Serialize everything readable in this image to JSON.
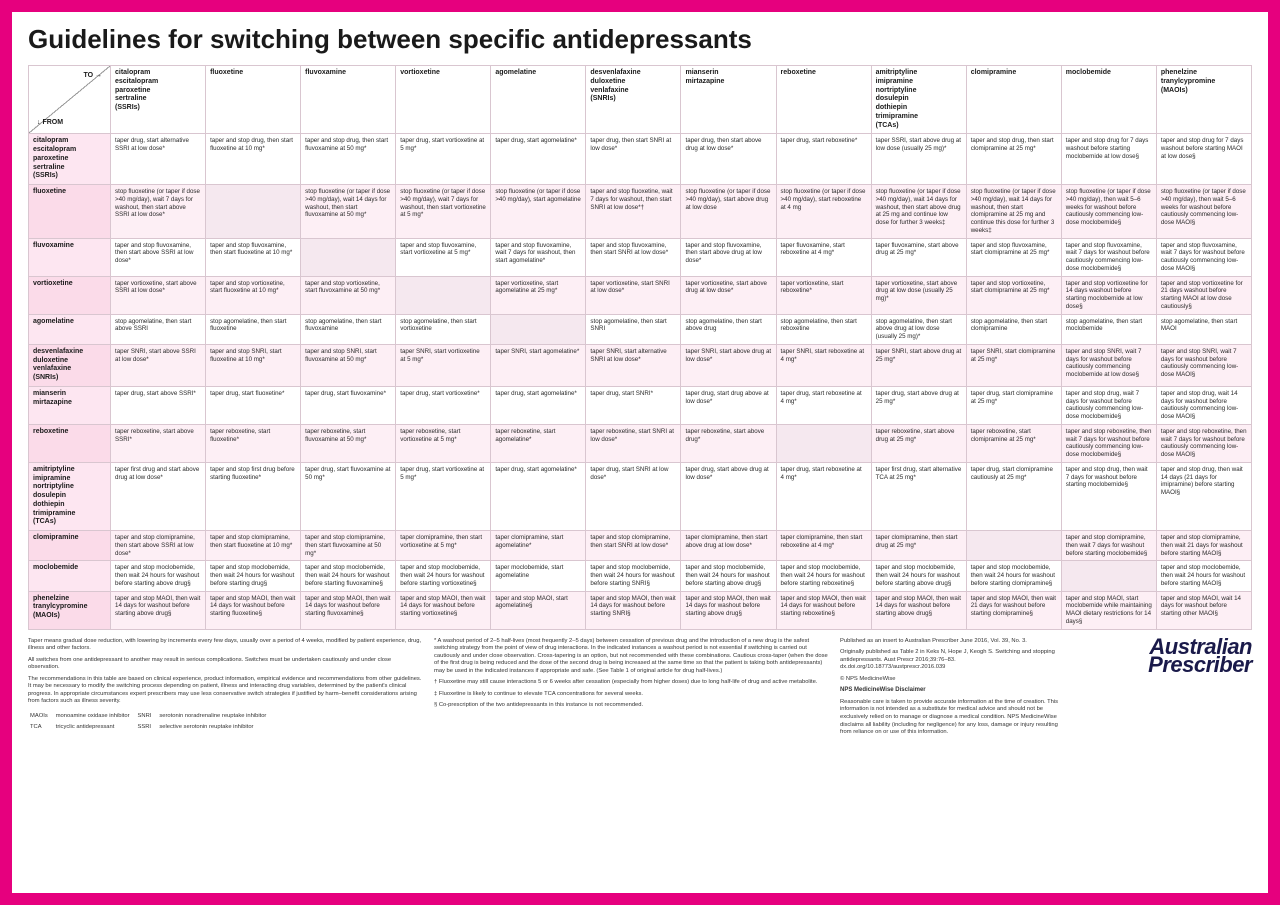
{
  "title": "Guidelines for switching between specific antidepressants",
  "corner": {
    "to": "TO  →",
    "from": "↓  FROM"
  },
  "columns": [
    "citalopram\nescitalopram\nparoxetine\nsertraline\n(SSRIs)",
    "fluoxetine",
    "fluvoxamine",
    "vortioxetine",
    "agomelatine",
    "desvenlafaxine\nduloxetine\nvenlafaxine\n(SNRIs)",
    "mianserin\nmirtazapine",
    "reboxetine",
    "amitriptyline\nimipramine\nnortriptyline\ndosulepin\ndothiepin\ntrimipramine\n(TCAs)",
    "clomipramine",
    "moclobemide",
    "phenelzine\ntranylcypromine\n(MAOIs)"
  ],
  "rows": [
    {
      "head": "citalopram\nescitalopram\nparoxetine\nsertraline\n(SSRIs)",
      "cells": [
        "taper drug, start alternative SSRI at low dose*",
        "taper and stop drug, then start fluoxetine at 10 mg*",
        "taper and stop drug, then start fluvoxamine at 50 mg*",
        "taper drug, start vortioxetine at 5 mg*",
        "taper drug, start agomelatine*",
        "taper drug, then start SNRI at low dose*",
        "taper drug, then start above drug at low dose*",
        "taper drug, start reboxetine*",
        "taper SSRI, start above drug at low dose (usually 25 mg)*",
        "taper and stop drug, then start clomipramine at 25 mg*",
        "taper and stop drug for 7 days washout before starting moclobemide at low dose§",
        "taper and stop drug for 7 days washout before starting MAOI at low dose§"
      ]
    },
    {
      "head": "fluoxetine",
      "cells": [
        "stop fluoxetine (or taper if dose >40 mg/day), wait 7 days for washout, then start above SSRI at low dose*",
        "",
        "stop fluoxetine (or taper if dose >40 mg/day), wait 14 days for washout, then start fluvoxamine at 50 mg*",
        "stop fluoxetine (or taper if dose >40 mg/day), wait 7 days for washout, then start vortioxetine at 5 mg*",
        "stop fluoxetine (or taper if dose >40 mg/day), start agomelatine",
        "taper and stop fluoxetine, wait 7 days for washout, then start SNRI at low dose*†",
        "stop fluoxetine (or taper if dose >40 mg/day), start above drug at low dose",
        "stop fluoxetine (or taper if dose >40 mg/day), start reboxetine at 4 mg",
        "stop fluoxetine (or taper if dose >40 mg/day), wait 14 days for washout, then start above drug at 25 mg and continue low dose for further 3 weeks‡",
        "stop fluoxetine (or taper if dose >40 mg/day), wait 14 days for washout, then start clomipramine at 25 mg and continue this dose for further 3 weeks‡",
        "stop fluoxetine (or taper if dose >40 mg/day), then wait 5–6 weeks for washout before cautiously commencing low-dose moclobemide§",
        "stop fluoxetine (or taper if dose >40 mg/day), then wait 5–6 weeks for washout before cautiously commencing low-dose MAOI§"
      ]
    },
    {
      "head": "fluvoxamine",
      "cells": [
        "taper and stop fluvoxamine, then start above SSRI at low dose*",
        "taper and stop fluvoxamine, then start fluoxetine at 10 mg*",
        "",
        "taper and stop fluvoxamine, start vortioxetine at 5 mg*",
        "taper and stop fluvoxamine, wait 7 days for washout, then start agomelatine*",
        "taper and stop fluvoxamine, then start SNRI at low dose*",
        "taper and stop fluvoxamine, then start above drug at low dose*",
        "taper fluvoxamine, start reboxetine at 4 mg*",
        "taper fluvoxamine, start above drug at 25 mg*",
        "taper and stop fluvoxamine, start clomipramine at 25 mg*",
        "taper and stop fluvoxamine, wait 7 days for washout before cautiously commencing low-dose moclobemide§",
        "taper and stop fluvoxamine, wait 7 days for washout before cautiously commencing low-dose MAOI§"
      ]
    },
    {
      "head": "vortioxetine",
      "cells": [
        "taper vortioxetine, start above SSRI at low dose*",
        "taper and stop vortioxetine, start fluoxetine at 10 mg*",
        "taper and stop vortioxetine, start fluvoxamine at 50 mg*",
        "",
        "taper vortioxetine, start agomelatine at 25 mg*",
        "taper vortioxetine, start SNRI at low dose*",
        "taper vortioxetine, start above drug at low dose*",
        "taper vortioxetine, start reboxetine*",
        "taper vortioxetine, start above drug at low dose (usually 25 mg)*",
        "taper and stop vortioxetine, start clomipramine at 25 mg*",
        "taper and stop vortioxetine for 14 days washout before starting moclobemide at low dose§",
        "taper and stop vortioxetine for 21 days washout before starting MAOI at low dose cautiously§"
      ]
    },
    {
      "head": "agomelatine",
      "cells": [
        "stop agomelatine, then start above SSRI",
        "stop agomelatine, then start fluoxetine",
        "stop agomelatine, then start fluvoxamine",
        "stop agomelatine, then start vortioxetine",
        "",
        "stop agomelatine, then start SNRI",
        "stop agomelatine, then start above drug",
        "stop agomelatine, then start reboxetine",
        "stop agomelatine, then start above drug at low dose (usually 25 mg)*",
        "stop agomelatine, then start clomipramine",
        "stop agomelatine, then start moclobemide",
        "stop agomelatine, then start MAOI"
      ]
    },
    {
      "head": "desvenlafaxine\nduloxetine\nvenlafaxine\n(SNRIs)",
      "cells": [
        "taper SNRI, start above SSRI at low dose*",
        "taper and stop SNRI, start fluoxetine at 10 mg*",
        "taper and stop SNRI, start fluvoxamine at 50 mg*",
        "taper SNRI, start vortioxetine at 5 mg*",
        "taper SNRI, start agomelatine*",
        "taper SNRI, start alternative SNRI at low dose*",
        "taper SNRI, start above drug at low dose*",
        "taper SNRI, start reboxetine at 4 mg*",
        "taper SNRI, start above drug at 25 mg*",
        "taper SNRI, start clomipramine at 25 mg*",
        "taper and stop SNRI, wait 7 days for washout before cautiously commencing moclobemide at low dose§",
        "taper and stop SNRI, wait 7 days for washout before cautiously commencing low-dose MAOI§"
      ]
    },
    {
      "head": "mianserin\nmirtazapine",
      "cells": [
        "taper drug, start above SSRI*",
        "taper drug, start fluoxetine*",
        "taper drug, start fluvoxamine*",
        "taper drug, start vortioxetine*",
        "taper drug, start agomelatine*",
        "taper drug, start SNRI*",
        "taper drug, start drug above at low dose*",
        "taper drug, start reboxetine at 4 mg*",
        "taper drug, start above drug at 25 mg*",
        "taper drug, start clomipramine at 25 mg*",
        "taper and stop drug, wait 7 days for washout before cautiously commencing low-dose moclobemide§",
        "taper and stop drug, wait 14 days for washout before cautiously commencing low-dose MAOI§"
      ]
    },
    {
      "head": "reboxetine",
      "cells": [
        "taper reboxetine, start above SSRI*",
        "taper reboxetine, start fluoxetine*",
        "taper reboxetine, start fluvoxamine at 50 mg*",
        "taper reboxetine, start vortioxetine at 5 mg*",
        "taper reboxetine, start agomelatine*",
        "taper reboxetine, start SNRI at low dose*",
        "taper reboxetine, start above drug*",
        "",
        "taper reboxetine, start above drug at 25 mg*",
        "taper reboxetine, start clomipramine at 25 mg*",
        "taper and stop reboxetine, then wait 7 days for washout before cautiously commencing low-dose moclobemide§",
        "taper and stop reboxetine, then wait 7 days for washout before cautiously commencing low-dose MAOI§"
      ]
    },
    {
      "head": "amitriptyline\nimipramine\nnortriptyline\ndosulepin\ndothiepin\ntrimipramine\n(TCAs)",
      "cells": [
        "taper first drug and start above drug at low dose*",
        "taper and stop first drug before starting fluoxetine*",
        "taper drug, start fluvoxamine at 50 mg*",
        "taper drug, start vortioxetine at 5 mg*",
        "taper drug, start agomelatine*",
        "taper drug, start SNRI at low dose*",
        "taper drug, start above drug at low dose*",
        "taper drug, start reboxetine at 4 mg*",
        "taper first drug, start alternative TCA at 25 mg*",
        "taper drug, start clomipramine cautiously at 25 mg*",
        "taper and stop drug, then wait 7 days for washout before starting moclobemide§",
        "taper and stop drug, then wait 14 days (21 days for imipramine) before starting MAOI§"
      ]
    },
    {
      "head": "clomipramine",
      "cells": [
        "taper and stop clomipramine, then start above SSRI at low dose*",
        "taper and stop clomipramine, then start fluoxetine at 10 mg*",
        "taper and stop clomipramine, then start fluvoxamine at 50 mg*",
        "taper clomipramine, then start vortioxetine at 5 mg*",
        "taper clomipramine, start agomelatine*",
        "taper and stop clomipramine, then start SNRI at low dose*",
        "taper clomipramine, then start above drug at low dose*",
        "taper clomipramine, then start reboxetine at 4 mg*",
        "taper clomipramine, then start drug at 25 mg*",
        "",
        "taper and stop clomipramine, then wait 7 days for washout before starting moclobemide§",
        "taper and stop clomipramine, then wait 21 days for washout before starting MAOI§"
      ]
    },
    {
      "head": "moclobemide",
      "cells": [
        "taper and stop moclobemide, then wait 24 hours for washout before starting above drug§",
        "taper and stop moclobemide, then wait 24 hours for washout before starting drug§",
        "taper and stop moclobemide, then wait 24 hours for washout before starting fluvoxamine§",
        "taper and stop moclobemide, then wait 24 hours for washout before starting vortioxetine§",
        "taper moclobemide, start agomelatine",
        "taper and stop moclobemide, then wait 24 hours for washout before starting SNRI§",
        "taper and stop moclobemide, then wait 24 hours for washout before starting above drug§",
        "taper and stop moclobemide, then wait 24 hours for washout before starting reboxetine§",
        "taper and stop moclobemide, then wait 24 hours for washout before starting above drug§",
        "taper and stop moclobemide, then wait 24 hours for washout before starting clomipramine§",
        "",
        "taper and stop moclobemide, then wait 24 hours for washout before starting MAOI§"
      ]
    },
    {
      "head": "phenelzine\ntranylcypromine\n(MAOIs)",
      "cells": [
        "taper and stop MAOI, then wait 14 days for washout before starting above drug§",
        "taper and stop MAOI, then wait 14 days for washout before starting fluoxetine§",
        "taper and stop MAOI, then wait 14 days for washout before starting fluvoxamine§",
        "taper and stop MAOI, then wait 14 days for washout before starting vortioxetine§",
        "taper and stop MAOI, start agomelatine§",
        "taper and stop MAOI, then wait 14 days for washout before starting SNRI§",
        "taper and stop MAOI, then wait 14 days for washout before starting above drug§",
        "taper and stop MAOI, then wait 14 days for washout before starting reboxetine§",
        "taper and stop MAOI, then wait 14 days for washout before starting above drug§",
        "taper and stop MAOI, then wait 21 days for washout before starting clomipramine§",
        "taper and stop MAOI, start moclobemide while maintaining MAOI dietary restrictions for 14 days§",
        "taper and stop MAOI, wait 14 days for washout before starting other MAOI§"
      ]
    }
  ],
  "footer": {
    "p1": "Taper means gradual dose reduction, with lowering by increments every few days, usually over a period of 4 weeks, modified by patient experience, drug, illness and other factors.",
    "p2": "All switches from one antidepressant to another may result in serious complications. Switches must be undertaken cautiously and under close observation.",
    "p3": "The recommendations in this table are based on clinical experience, product information, empirical evidence and recommendations from other guidelines. It may be necessary to modify the switching process depending on patient, illness and interacting drug variables, determined by the patient's clinical progress. In appropriate circumstances expert prescribers may use less conservative switch strategies if justified by harm–benefit considerations arising from factors such as illness severity.",
    "abbrev": [
      [
        "MAOIs",
        "monoamine oxidase inhibitor",
        "SNRI",
        "serotonin noradrenaline reuptake inhibitor"
      ],
      [
        "TCA",
        "tricyclic antidepressant",
        "SSRI",
        "selective serotonin reuptake inhibitor"
      ]
    ],
    "n1": "* A washout period of 2–5 half-lives (most frequently 2–5 days) between cessation of previous drug and the introduction of a new drug is the safest switching strategy from the point of view of drug interactions. In the indicated instances a washout period is not essential if switching is carried out cautiously and under close observation. Cross-tapering is an option, but not recommended with these combinations. Cautious cross-taper (when the dose of the first drug is being reduced and the dose of the second drug is being increased at the same time so that the patient is taking both antidepressants) may be used in the indicated instances if appropriate and safe. (See Table 1 of original article for drug half-lives.)",
    "n2": "† Fluoxetine may still cause interactions 5 or 6 weeks after cessation (especially from higher doses) due to long half-life of drug and active metabolite.",
    "n3": "‡ Fluoxetine is likely to continue to elevate TCA concentrations for several weeks.",
    "n4": "§ Co-prescription of the two antidepressants in this instance is not recommended.",
    "pub1": "Published as an insert to Australian Prescriber June 2016, Vol. 39, No. 3.",
    "pub2": "Originally published as Table 2 in Keks N, Hope J, Keogh S. Switching and stopping antidepressants. Aust Prescr 2016;39:76–83. dx.doi.org/10.18773/austprescr.2016.039",
    "pub3": "© NPS MedicineWise",
    "disclaimer_title": "NPS MedicineWise Disclaimer",
    "disclaimer": "Reasonable care is taken to provide accurate information at the time of creation. This information is not intended as a substitute for medical advice and should not be exclusively relied on to manage or diagnose a medical condition. NPS MedicineWise disclaims all liability (including for negligence) for any loss, damage or injury resulting from reliance on or use of this information.",
    "logo1": "Australian",
    "logo2": "Prescriber"
  }
}
